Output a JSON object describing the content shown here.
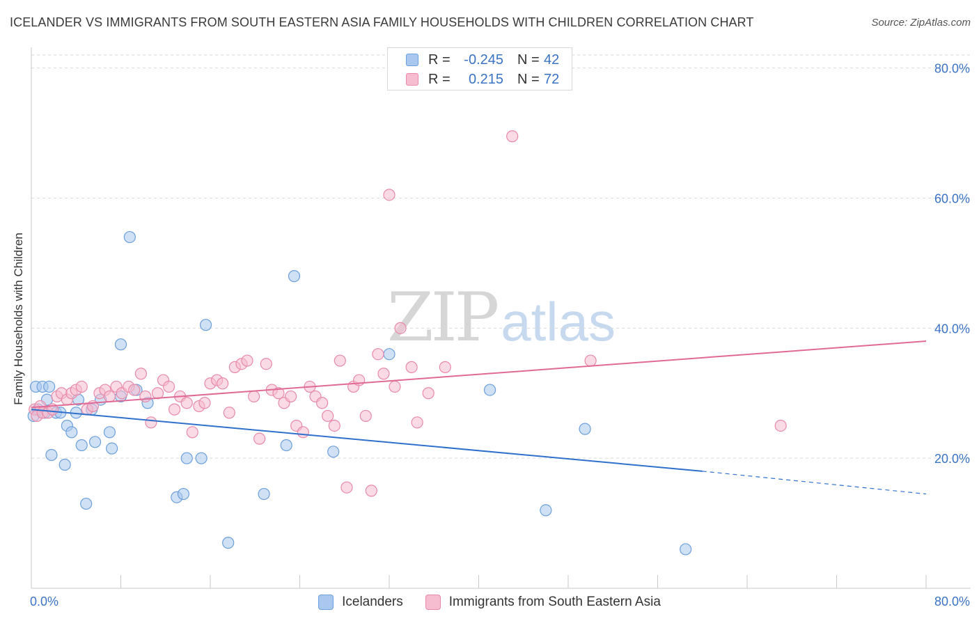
{
  "title": "ICELANDER VS IMMIGRANTS FROM SOUTH EASTERN ASIA FAMILY HOUSEHOLDS WITH CHILDREN CORRELATION CHART",
  "source": "Source: ZipAtlas.com",
  "watermark": {
    "zip": "ZIP",
    "atlas": "atlas"
  },
  "legend_top": {
    "rows": [
      {
        "r_label": "R =",
        "r_value": "-0.245",
        "n_label": "N =",
        "n_value": "42"
      },
      {
        "r_label": "R =",
        "r_value": "0.215",
        "n_label": "N =",
        "n_value": "72"
      }
    ]
  },
  "colors": {
    "blue_fill": "#aac8ef",
    "blue_stroke": "#6c9fdb",
    "blue_line": "#2f70cc",
    "pink_fill": "#f6bcd0",
    "pink_stroke": "#e889a8",
    "pink_line": "#e06a95",
    "axis_text": "#3b73c4",
    "grid": "#d9d9d9"
  },
  "chart_data": {
    "type": "scatter",
    "title": "ICELANDER VS IMMIGRANTS FROM SOUTH EASTERN ASIA FAMILY HOUSEHOLDS WITH CHILDREN CORRELATION CHART",
    "xlabel": "",
    "ylabel": "Family Households with Children",
    "xlim": [
      0,
      80
    ],
    "ylim": [
      0,
      82
    ],
    "x_tick_labels": [
      "0.0%",
      "80.0%"
    ],
    "y_ticks": [
      20,
      40,
      60,
      80
    ],
    "y_tick_labels": [
      "20.0%",
      "40.0%",
      "60.0%",
      "80.0%"
    ],
    "grid": true,
    "legend_position": "bottom",
    "series": [
      {
        "name": "Icelanders",
        "color": "blue",
        "points": [
          [
            0.2,
            26.5
          ],
          [
            0.4,
            31.0
          ],
          [
            0.6,
            27.5
          ],
          [
            1.0,
            31.0
          ],
          [
            1.2,
            27.0
          ],
          [
            1.4,
            29.0
          ],
          [
            1.6,
            31.0
          ],
          [
            1.8,
            20.5
          ],
          [
            2.2,
            27.0
          ],
          [
            2.6,
            27.0
          ],
          [
            3.0,
            19.0
          ],
          [
            3.2,
            25.0
          ],
          [
            3.6,
            24.0
          ],
          [
            4.0,
            27.0
          ],
          [
            4.2,
            29.0
          ],
          [
            4.5,
            22.0
          ],
          [
            4.9,
            13.0
          ],
          [
            5.4,
            27.5
          ],
          [
            5.7,
            22.5
          ],
          [
            6.2,
            29.0
          ],
          [
            7.0,
            24.0
          ],
          [
            7.2,
            21.5
          ],
          [
            8.0,
            29.5
          ],
          [
            8.0,
            37.5
          ],
          [
            8.8,
            54.0
          ],
          [
            9.4,
            30.5
          ],
          [
            10.4,
            28.5
          ],
          [
            13.0,
            14.0
          ],
          [
            13.6,
            14.5
          ],
          [
            13.9,
            20.0
          ],
          [
            15.2,
            20.0
          ],
          [
            15.6,
            40.5
          ],
          [
            17.6,
            7.0
          ],
          [
            20.8,
            14.5
          ],
          [
            22.8,
            22.0
          ],
          [
            23.5,
            48.0
          ],
          [
            27.0,
            21.0
          ],
          [
            32.0,
            36.0
          ],
          [
            41.0,
            30.5
          ],
          [
            46.0,
            12.0
          ],
          [
            49.5,
            24.5
          ],
          [
            58.5,
            6.0
          ]
        ]
      },
      {
        "name": "Immigrants from South Eastern Asia",
        "color": "pink",
        "points": [
          [
            0.3,
            27.5
          ],
          [
            0.5,
            26.5
          ],
          [
            0.8,
            28.0
          ],
          [
            1.0,
            27.0
          ],
          [
            1.5,
            27.0
          ],
          [
            1.9,
            27.5
          ],
          [
            2.3,
            29.5
          ],
          [
            2.7,
            30.0
          ],
          [
            3.2,
            29.0
          ],
          [
            3.6,
            30.0
          ],
          [
            4.0,
            30.5
          ],
          [
            4.5,
            31.0
          ],
          [
            5.0,
            27.5
          ],
          [
            5.5,
            28.0
          ],
          [
            6.1,
            30.0
          ],
          [
            6.6,
            30.5
          ],
          [
            7.0,
            29.5
          ],
          [
            7.6,
            31.0
          ],
          [
            8.1,
            30.0
          ],
          [
            8.7,
            31.0
          ],
          [
            9.2,
            30.5
          ],
          [
            9.8,
            33.0
          ],
          [
            10.2,
            29.5
          ],
          [
            10.7,
            25.5
          ],
          [
            11.3,
            30.0
          ],
          [
            11.8,
            32.0
          ],
          [
            12.3,
            31.0
          ],
          [
            12.8,
            27.5
          ],
          [
            13.3,
            29.5
          ],
          [
            13.9,
            28.5
          ],
          [
            14.4,
            24.0
          ],
          [
            15.0,
            28.0
          ],
          [
            15.5,
            28.5
          ],
          [
            16.0,
            31.5
          ],
          [
            16.6,
            32.0
          ],
          [
            17.1,
            31.5
          ],
          [
            17.7,
            27.0
          ],
          [
            18.2,
            34.0
          ],
          [
            18.8,
            34.5
          ],
          [
            19.3,
            35.0
          ],
          [
            19.9,
            29.5
          ],
          [
            20.4,
            23.0
          ],
          [
            21.0,
            34.5
          ],
          [
            21.5,
            30.5
          ],
          [
            22.1,
            30.0
          ],
          [
            22.6,
            28.5
          ],
          [
            23.2,
            29.5
          ],
          [
            23.7,
            25.0
          ],
          [
            24.3,
            24.0
          ],
          [
            24.9,
            31.0
          ],
          [
            25.4,
            29.5
          ],
          [
            26.0,
            28.5
          ],
          [
            26.5,
            26.5
          ],
          [
            27.1,
            25.0
          ],
          [
            27.6,
            35.0
          ],
          [
            28.2,
            15.5
          ],
          [
            28.8,
            31.0
          ],
          [
            29.3,
            32.0
          ],
          [
            29.9,
            26.5
          ],
          [
            30.4,
            15.0
          ],
          [
            31.0,
            36.0
          ],
          [
            31.5,
            33.0
          ],
          [
            32.0,
            60.5
          ],
          [
            32.5,
            31.0
          ],
          [
            33.0,
            40.0
          ],
          [
            34.0,
            34.0
          ],
          [
            34.5,
            25.5
          ],
          [
            35.5,
            30.0
          ],
          [
            37.0,
            34.0
          ],
          [
            43.0,
            69.5
          ],
          [
            50.0,
            35.0
          ],
          [
            67.0,
            25.0
          ]
        ]
      }
    ],
    "trend_lines": [
      {
        "series": "Icelanders",
        "from": [
          0,
          27.5
        ],
        "to": [
          60,
          18.0
        ],
        "dashed_to": [
          80,
          14.5
        ]
      },
      {
        "series": "Immigrants from South Eastern Asia",
        "from": [
          0,
          27.8
        ],
        "to": [
          80,
          38.0
        ]
      }
    ]
  }
}
